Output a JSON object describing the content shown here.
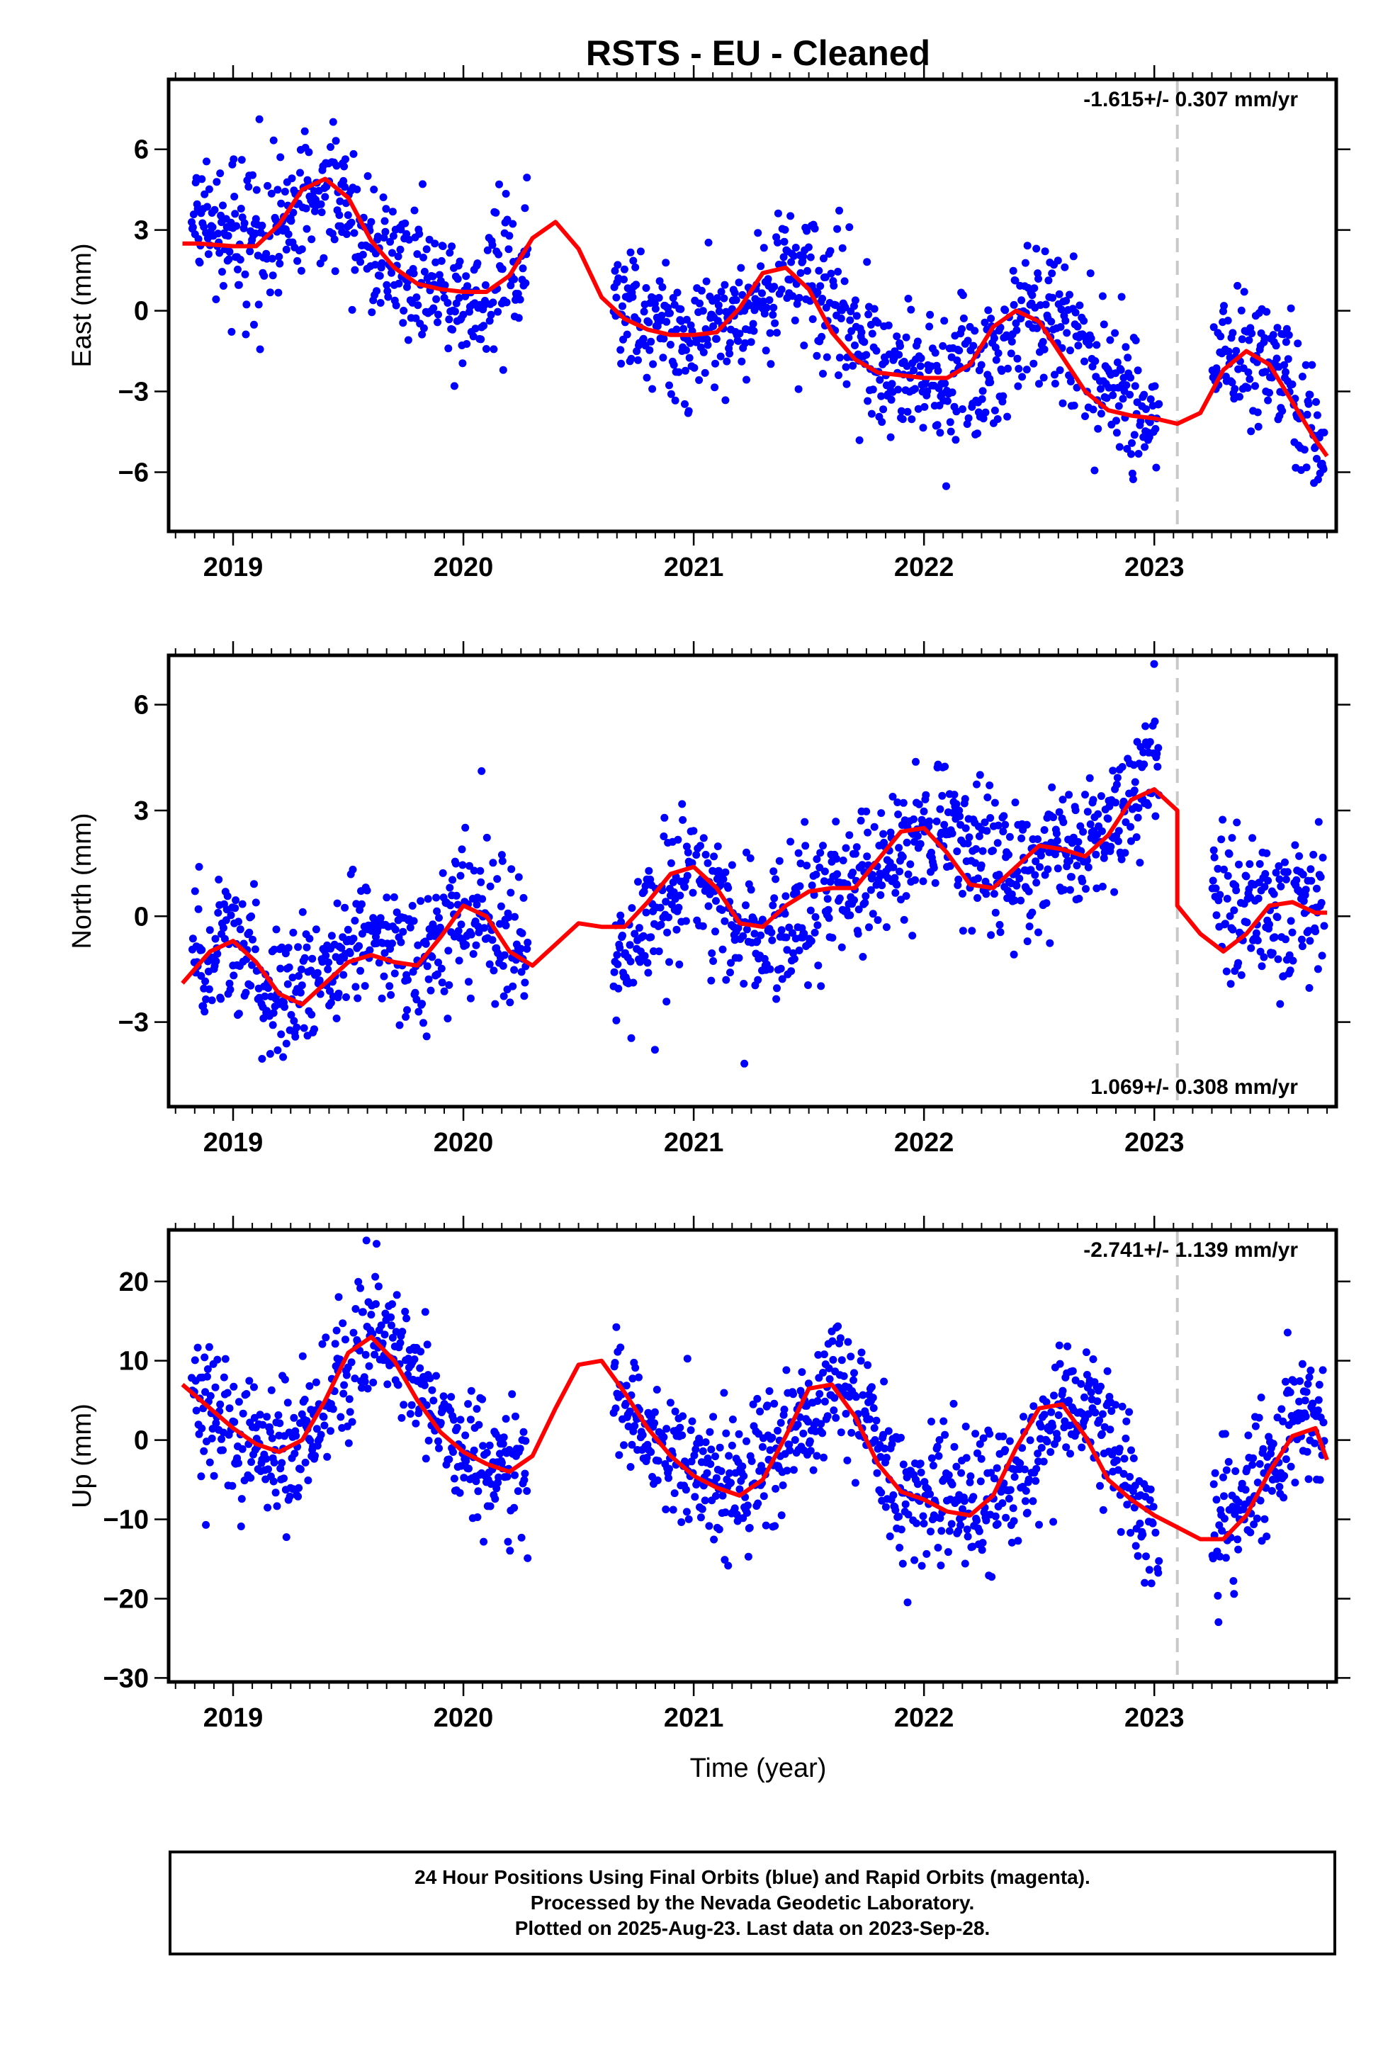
{
  "title": "RSTS  - EU - Cleaned",
  "x_axis_label": "Time (year)",
  "footer": {
    "line1": "24 Hour Positions Using Final Orbits (blue) and Rapid Orbits (magenta).",
    "line2": "Processed by the Nevada Geodetic Laboratory.",
    "line3": "Plotted on 2025-Aug-23. Last data on 2023-Sep-28."
  },
  "colors": {
    "points": "#0000ff",
    "fit": "#ff0000",
    "marker_line": "#c8c8c8",
    "axes": "#000000"
  },
  "chart_data": [
    {
      "type": "scatter",
      "name": "east",
      "ylabel": "East (mm)",
      "rate_label": "-1.615+/- 0.307 mm/yr",
      "rate_label_position": "top-right",
      "xlim": [
        2018.72,
        2023.79
      ],
      "ylim": [
        -8.2,
        8.6
      ],
      "x_ticks": [
        2019,
        2020,
        2021,
        2022,
        2023
      ],
      "y_ticks": [
        -6,
        -3,
        0,
        3,
        6
      ],
      "tick_labels": {
        "x": [
          "2019",
          "2020",
          "2021",
          "2022",
          "2023"
        ],
        "y": [
          "−6",
          "−3",
          "0",
          "3",
          "6"
        ]
      },
      "marker_x": 2023.1,
      "gaps": [
        [
          2020.28,
          2020.65
        ],
        [
          2023.02,
          2023.25
        ]
      ],
      "points_sampled_mean": {
        "x": [
          2018.82,
          2019.0,
          2019.2,
          2019.4,
          2019.6,
          2019.8,
          2020.0,
          2020.2,
          2020.3,
          2020.65,
          2020.8,
          2021.0,
          2021.2,
          2021.4,
          2021.6,
          2021.75,
          2021.9,
          2022.1,
          2022.3,
          2022.45,
          2022.6,
          2022.75,
          2022.9,
          2023.02,
          2023.3,
          2023.45,
          2023.6,
          2023.74
        ],
        "y": [
          3.3,
          2.8,
          3.1,
          4.6,
          2.3,
          1.0,
          0.6,
          1.4,
          2.7,
          0.4,
          -0.8,
          -1.0,
          -0.6,
          1.5,
          0.7,
          -1.5,
          -2.4,
          -2.6,
          -2.0,
          0.0,
          -0.3,
          -2.3,
          -3.5,
          -3.8,
          -1.8,
          -1.5,
          -3.0,
          -5.2
        ]
      },
      "fit_line": {
        "x": [
          2018.78,
          2018.85,
          2019.0,
          2019.1,
          2019.2,
          2019.3,
          2019.4,
          2019.5,
          2019.6,
          2019.7,
          2019.8,
          2019.9,
          2020.0,
          2020.1,
          2020.2,
          2020.3,
          2020.4,
          2020.5,
          2020.6,
          2020.7,
          2020.8,
          2020.9,
          2021.0,
          2021.1,
          2021.2,
          2021.3,
          2021.4,
          2021.5,
          2021.6,
          2021.7,
          2021.8,
          2021.9,
          2022.0,
          2022.1,
          2022.2,
          2022.3,
          2022.4,
          2022.5,
          2022.6,
          2022.7,
          2022.8,
          2022.9,
          2023.0,
          2023.1,
          2023.2,
          2023.3,
          2023.4,
          2023.5,
          2023.6,
          2023.7,
          2023.75
        ],
        "y": [
          2.5,
          2.5,
          2.4,
          2.4,
          3.2,
          4.5,
          4.9,
          4.2,
          2.6,
          1.6,
          1.0,
          0.8,
          0.7,
          0.7,
          1.3,
          2.7,
          3.3,
          2.3,
          0.5,
          -0.3,
          -0.7,
          -0.9,
          -0.9,
          -0.8,
          0.1,
          1.4,
          1.6,
          0.8,
          -0.8,
          -1.8,
          -2.3,
          -2.4,
          -2.5,
          -2.5,
          -2.0,
          -0.6,
          0.0,
          -0.4,
          -1.7,
          -3.0,
          -3.7,
          -3.9,
          -4.0,
          -4.2,
          -3.8,
          -2.2,
          -1.5,
          -2.0,
          -3.4,
          -4.8,
          -5.4
        ]
      }
    },
    {
      "type": "scatter",
      "name": "north",
      "ylabel": "North (mm)",
      "rate_label": "1.069+/- 0.308 mm/yr",
      "rate_label_position": "bottom-right",
      "xlim": [
        2018.72,
        2023.79
      ],
      "ylim": [
        -5.4,
        7.4
      ],
      "x_ticks": [
        2019,
        2020,
        2021,
        2022,
        2023
      ],
      "y_ticks": [
        -3,
        0,
        3,
        6
      ],
      "tick_labels": {
        "x": [
          "2019",
          "2020",
          "2021",
          "2022",
          "2023"
        ],
        "y": [
          "−3",
          "0",
          "3",
          "6"
        ]
      },
      "marker_x": 2023.1,
      "gaps": [
        [
          2020.28,
          2020.65
        ],
        [
          2023.02,
          2023.25
        ]
      ],
      "points_sampled_mean": {
        "x": [
          2018.82,
          2019.0,
          2019.2,
          2019.4,
          2019.6,
          2019.8,
          2020.0,
          2020.2,
          2020.3,
          2020.65,
          2020.8,
          2021.0,
          2021.2,
          2021.4,
          2021.6,
          2021.75,
          2021.9,
          2022.1,
          2022.3,
          2022.45,
          2022.6,
          2022.75,
          2022.9,
          2023.02,
          2023.3,
          2023.45,
          2023.6,
          2023.74
        ],
        "y": [
          -1.5,
          -0.7,
          -2.0,
          -1.7,
          -0.5,
          -1.2,
          0.2,
          -1.0,
          -1.5,
          -1.6,
          -0.2,
          1.2,
          -0.5,
          -0.3,
          0.8,
          0.9,
          1.8,
          2.5,
          1.3,
          1.0,
          1.9,
          2.0,
          3.3,
          5.2,
          0.3,
          0.0,
          0.0,
          0.2
        ]
      },
      "fit_line": {
        "x": [
          2018.78,
          2018.9,
          2019.0,
          2019.1,
          2019.2,
          2019.3,
          2019.4,
          2019.5,
          2019.6,
          2019.7,
          2019.8,
          2019.9,
          2020.0,
          2020.1,
          2020.2,
          2020.3,
          2020.4,
          2020.5,
          2020.6,
          2020.7,
          2020.8,
          2020.9,
          2021.0,
          2021.1,
          2021.2,
          2021.3,
          2021.4,
          2021.5,
          2021.6,
          2021.7,
          2021.8,
          2021.9,
          2022.0,
          2022.1,
          2022.2,
          2022.3,
          2022.4,
          2022.5,
          2022.6,
          2022.7,
          2022.8,
          2022.9,
          2023.0,
          2023.1,
          2023.1,
          2023.2,
          2023.3,
          2023.4,
          2023.5,
          2023.6,
          2023.7,
          2023.75
        ],
        "y": [
          -1.9,
          -1.0,
          -0.7,
          -1.3,
          -2.2,
          -2.5,
          -1.9,
          -1.3,
          -1.1,
          -1.3,
          -1.4,
          -0.6,
          0.3,
          0.0,
          -1.0,
          -1.4,
          -0.8,
          -0.2,
          -0.3,
          -0.3,
          0.4,
          1.2,
          1.4,
          0.8,
          -0.2,
          -0.3,
          0.3,
          0.7,
          0.8,
          0.8,
          1.6,
          2.4,
          2.5,
          1.8,
          0.9,
          0.8,
          1.4,
          2.0,
          1.9,
          1.7,
          2.3,
          3.3,
          3.6,
          3.0,
          0.3,
          -0.5,
          -1.0,
          -0.5,
          0.3,
          0.4,
          0.1,
          0.1
        ]
      }
    },
    {
      "type": "scatter",
      "name": "up",
      "ylabel": "Up (mm)",
      "rate_label": "-2.741+/- 1.139 mm/yr",
      "rate_label_position": "top-right",
      "xlim": [
        2018.72,
        2023.79
      ],
      "ylim": [
        -30.5,
        26.5
      ],
      "x_ticks": [
        2019,
        2020,
        2021,
        2022,
        2023
      ],
      "y_ticks": [
        -30,
        -20,
        -10,
        0,
        10,
        20
      ],
      "tick_labels": {
        "x": [
          "2019",
          "2020",
          "2021",
          "2022",
          "2023"
        ],
        "y": [
          "−30",
          "−20",
          "−10",
          "0",
          "10",
          "20"
        ]
      },
      "marker_x": 2023.1,
      "gaps": [
        [
          2020.28,
          2020.65
        ],
        [
          2023.02,
          2023.25
        ]
      ],
      "points_sampled_mean": {
        "x": [
          2018.82,
          2019.0,
          2019.2,
          2019.4,
          2019.6,
          2019.8,
          2020.0,
          2020.2,
          2020.3,
          2020.65,
          2020.8,
          2021.0,
          2021.2,
          2021.4,
          2021.6,
          2021.75,
          2021.9,
          2022.1,
          2022.3,
          2022.45,
          2022.6,
          2022.75,
          2022.9,
          2023.02,
          2023.3,
          2023.45,
          2023.6,
          2023.74
        ],
        "y": [
          6.0,
          1.5,
          -3.0,
          4.0,
          13.0,
          7.0,
          -1.0,
          -4.0,
          -5.0,
          8.0,
          1.0,
          -4.0,
          -6.0,
          -1.0,
          7.0,
          4.0,
          -6.0,
          -9.0,
          -8.0,
          -3.0,
          5.0,
          4.0,
          -6.0,
          -15.0,
          -10.0,
          -6.0,
          3.0,
          2.0
        ]
      },
      "fit_line": {
        "x": [
          2018.78,
          2018.9,
          2019.0,
          2019.1,
          2019.2,
          2019.3,
          2019.4,
          2019.5,
          2019.6,
          2019.7,
          2019.8,
          2019.9,
          2020.0,
          2020.1,
          2020.2,
          2020.3,
          2020.4,
          2020.5,
          2020.6,
          2020.7,
          2020.8,
          2020.9,
          2021.0,
          2021.1,
          2021.2,
          2021.3,
          2021.4,
          2021.5,
          2021.6,
          2021.7,
          2021.8,
          2021.9,
          2022.0,
          2022.1,
          2022.2,
          2022.3,
          2022.4,
          2022.5,
          2022.6,
          2022.7,
          2022.8,
          2022.9,
          2023.0,
          2023.1,
          2023.2,
          2023.3,
          2023.4,
          2023.5,
          2023.6,
          2023.7,
          2023.75
        ],
        "y": [
          7.0,
          4.0,
          1.5,
          -0.5,
          -1.5,
          0.0,
          5.0,
          11.0,
          13.0,
          10.0,
          5.0,
          1.0,
          -1.5,
          -3.0,
          -4.0,
          -2.0,
          4.0,
          9.5,
          10.0,
          6.0,
          1.5,
          -2.0,
          -4.5,
          -6.0,
          -7.0,
          -5.0,
          0.5,
          6.5,
          7.0,
          3.0,
          -3.0,
          -6.5,
          -7.5,
          -9.0,
          -9.5,
          -7.0,
          -1.0,
          4.0,
          4.5,
          0.5,
          -5.0,
          -7.5,
          -9.5,
          -11.0,
          -12.5,
          -12.5,
          -9.5,
          -4.0,
          0.5,
          1.5,
          -2.5
        ]
      }
    }
  ]
}
